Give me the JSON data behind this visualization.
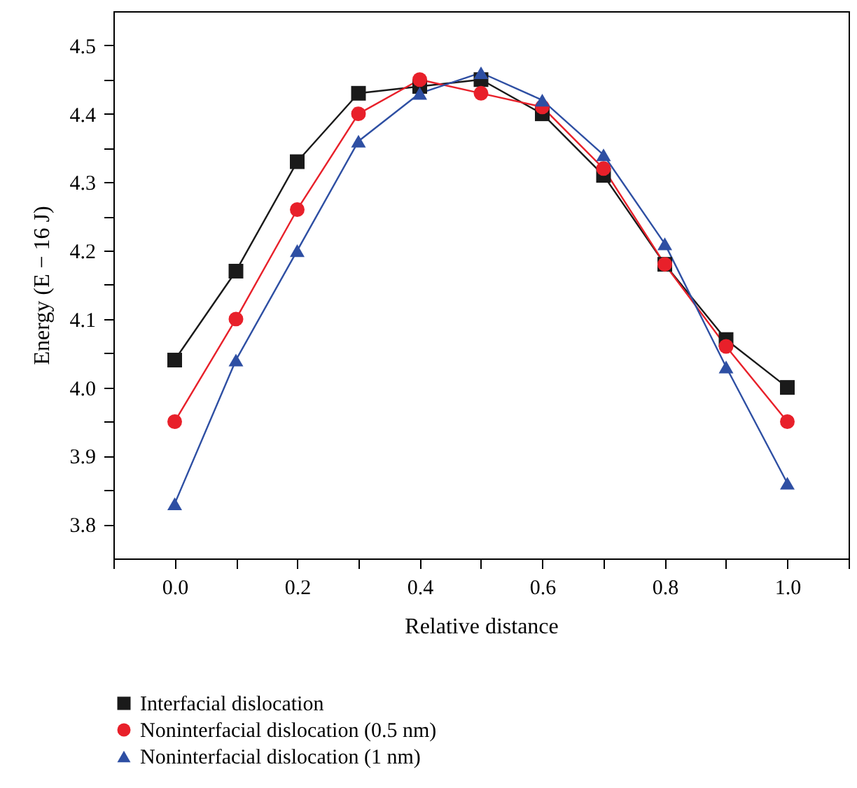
{
  "chart_data": {
    "type": "line",
    "xlabel": "Relative distance",
    "ylabel": "Energy (E − 16 J)",
    "x": [
      0,
      0.1,
      0.2,
      0.3,
      0.4,
      0.5,
      0.6,
      0.7,
      0.8,
      0.9,
      1.0
    ],
    "series": [
      {
        "name": "Interfacial dislocation",
        "color": "#1a1a1a",
        "marker": "square",
        "values": [
          4.04,
          4.17,
          4.33,
          4.43,
          4.44,
          4.45,
          4.4,
          4.31,
          4.18,
          4.07,
          4.0
        ]
      },
      {
        "name": "Noninterfacial dislocation (0.5 nm)",
        "color": "#e8202a",
        "marker": "circle",
        "values": [
          3.95,
          4.1,
          4.26,
          4.4,
          4.45,
          4.43,
          4.41,
          4.32,
          4.18,
          4.06,
          3.95
        ]
      },
      {
        "name": "Noninterfacial dislocation (1 nm)",
        "color": "#2e4fa3",
        "marker": "triangle",
        "values": [
          3.83,
          4.04,
          4.2,
          4.36,
          4.43,
          4.46,
          4.42,
          4.34,
          4.21,
          4.03,
          3.86
        ]
      }
    ],
    "xlim": [
      -0.1,
      1.1
    ],
    "xticks": [
      {
        "value": -0.1,
        "label": null
      },
      {
        "value": 0,
        "label": "0.0"
      },
      {
        "value": 0.1,
        "label": null
      },
      0.2,
      {
        "value": 0.3,
        "label": null
      },
      0.4,
      {
        "value": 0.5,
        "label": null
      },
      0.6,
      {
        "value": 0.7,
        "label": null
      },
      0.8,
      {
        "value": 0.9,
        "label": null
      },
      {
        "value": 1,
        "label": "1.0"
      },
      {
        "value": 1.1,
        "label": null
      }
    ],
    "ylim": [
      3.75,
      4.55
    ],
    "yticks": [
      3.8,
      {
        "value": 3.85,
        "label": null
      },
      3.9,
      {
        "value": 3.95,
        "label": null
      },
      {
        "value": 4,
        "label": "4.0"
      },
      {
        "value": 4.05,
        "label": null
      },
      4.1,
      {
        "value": 4.15,
        "label": null
      },
      4.2,
      {
        "value": 4.25,
        "label": null
      },
      4.3,
      {
        "value": 4.35,
        "label": null
      },
      4.4,
      {
        "value": 4.45,
        "label": null
      },
      4.5
    ],
    "grid": false,
    "legend": "bottom",
    "line_style": "solid"
  }
}
